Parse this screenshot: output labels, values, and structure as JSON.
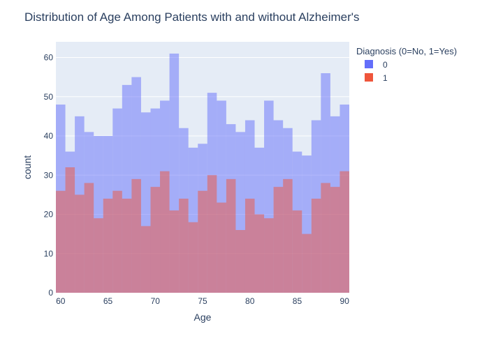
{
  "chart_data": {
    "type": "bar",
    "title": "Distribution of Age Among Patients with and without Alzheimer's",
    "xlabel": "Age",
    "ylabel": "count",
    "xlim": [
      59.5,
      90.5
    ],
    "ylim": [
      0,
      64
    ],
    "x_ticks": [
      60,
      65,
      70,
      75,
      80,
      85,
      90
    ],
    "y_ticks": [
      0,
      10,
      20,
      30,
      40,
      50,
      60
    ],
    "grid": true,
    "barmode": "overlay",
    "legend": {
      "title": "Diagnosis (0=No, 1=Yes)",
      "placement": "top-right"
    },
    "x": [
      60,
      61,
      62,
      63,
      64,
      65,
      66,
      67,
      68,
      69,
      70,
      71,
      72,
      73,
      74,
      75,
      76,
      77,
      78,
      79,
      80,
      81,
      82,
      83,
      84,
      85,
      86,
      87,
      88,
      89,
      90
    ],
    "series": [
      {
        "name": "0",
        "color": "#636efa",
        "values": [
          48,
          36,
          45,
          41,
          40,
          40,
          47,
          53,
          55,
          46,
          47,
          49,
          61,
          42,
          37,
          38,
          51,
          49,
          43,
          41,
          44,
          37,
          49,
          44,
          42,
          36,
          35,
          44,
          56,
          45,
          48
        ]
      },
      {
        "name": "1",
        "color": "#ef553b",
        "values": [
          26,
          32,
          25,
          28,
          19,
          24,
          26,
          24,
          29,
          17,
          27,
          31,
          21,
          24,
          18,
          26,
          30,
          23,
          29,
          16,
          24,
          20,
          19,
          27,
          29,
          21,
          15,
          24,
          28,
          27,
          31
        ]
      }
    ]
  }
}
